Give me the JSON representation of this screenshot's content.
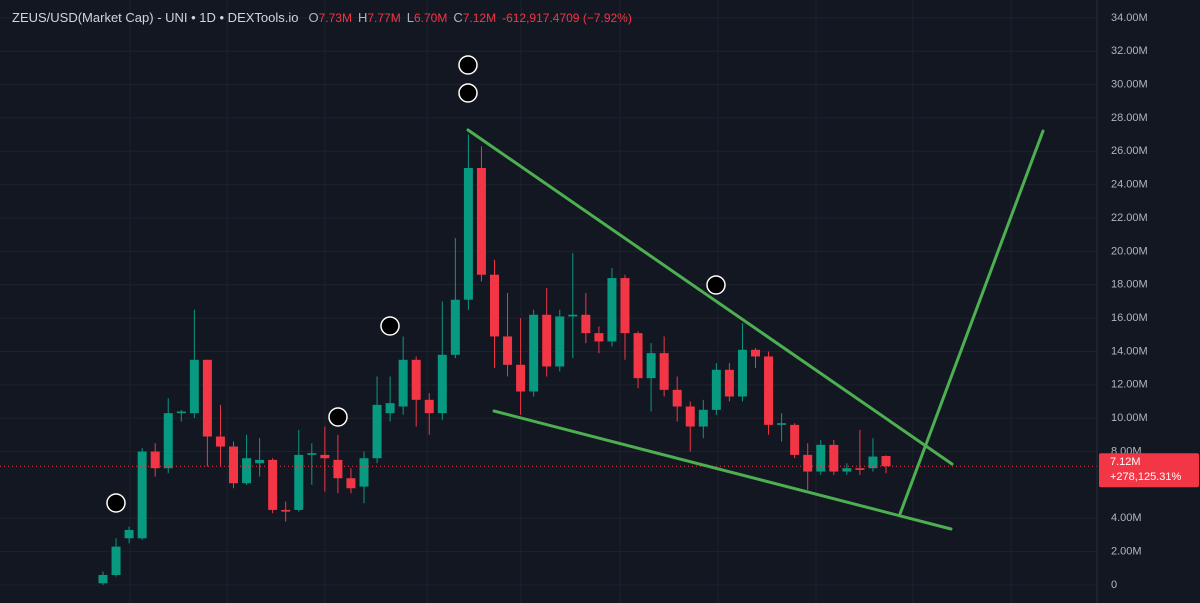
{
  "chart_data": {
    "type": "candlestick",
    "title": "ZEUS/USD(Market Cap) - UNI • 1D • DEXTools.io",
    "ohlc_header": [
      {
        "key": "O",
        "value": "7.73M"
      },
      {
        "key": "H",
        "value": "7.77M"
      },
      {
        "key": "L",
        "value": "6.70M"
      },
      {
        "key": "C",
        "value": "7.12M"
      }
    ],
    "change": "-612,917.4709 (−7.92%)",
    "open": [
      0.1,
      0.6,
      2.8,
      2.8,
      8.0,
      7.0,
      10.3,
      10.3,
      13.5,
      8.9,
      8.3,
      6.1,
      7.3,
      7.5,
      4.5,
      4.5,
      7.8,
      7.8,
      7.5,
      6.4,
      5.9,
      7.6,
      10.3,
      10.7,
      13.5,
      11.1,
      10.3,
      13.8,
      17.1,
      25.0,
      18.6,
      14.9,
      13.2,
      11.6,
      16.2,
      13.1,
      16.1,
      16.2,
      15.1,
      14.6,
      18.4,
      15.1,
      12.4,
      13.9,
      11.7,
      10.7,
      9.5,
      10.5,
      12.9,
      11.3,
      14.1,
      13.7,
      9.6,
      9.6,
      7.8,
      6.8,
      8.4,
      6.8,
      7.0,
      7.0,
      7.73
    ],
    "high": [
      0.8,
      2.8,
      3.5,
      8.2,
      8.5,
      11.2,
      10.5,
      16.5,
      13.5,
      10.8,
      8.6,
      9.0,
      8.8,
      7.6,
      5.0,
      9.3,
      8.5,
      9.5,
      9.0,
      7.0,
      8.0,
      12.5,
      12.5,
      14.9,
      13.7,
      11.5,
      17.0,
      20.8,
      27.0,
      26.3,
      19.5,
      17.5,
      16.0,
      16.5,
      17.8,
      16.5,
      19.9,
      17.5,
      15.5,
      19.0,
      18.6,
      15.2,
      14.5,
      14.9,
      12.5,
      11.0,
      11.1,
      13.3,
      13.3,
      15.7,
      14.2,
      14.0,
      10.3,
      9.7,
      8.5,
      8.7,
      8.7,
      7.3,
      9.3,
      8.8,
      7.77
    ],
    "low": [
      0.0,
      0.5,
      2.5,
      2.7,
      6.5,
      6.7,
      9.8,
      10.0,
      7.1,
      7.1,
      5.8,
      6.0,
      6.5,
      4.3,
      3.8,
      4.4,
      6.0,
      5.6,
      5.5,
      5.5,
      4.9,
      7.3,
      9.8,
      10.2,
      9.5,
      9.0,
      9.9,
      13.6,
      16.5,
      18.2,
      13.0,
      12.5,
      10.2,
      11.3,
      12.5,
      12.8,
      13.6,
      14.5,
      13.9,
      14.3,
      13.5,
      11.8,
      10.4,
      11.3,
      9.8,
      8.0,
      8.8,
      10.2,
      11.0,
      11.0,
      13.0,
      9.0,
      8.6,
      7.6,
      5.7,
      6.6,
      6.6,
      6.6,
      6.6,
      6.8,
      6.7
    ],
    "close": [
      0.6,
      2.3,
      3.3,
      8.0,
      7.0,
      10.3,
      10.4,
      13.5,
      8.9,
      8.3,
      6.1,
      7.6,
      7.5,
      4.5,
      4.4,
      7.8,
      7.9,
      7.6,
      6.4,
      5.8,
      7.6,
      10.8,
      10.9,
      13.5,
      11.1,
      10.3,
      13.8,
      17.1,
      25.0,
      18.6,
      14.9,
      13.2,
      11.6,
      16.2,
      13.1,
      16.1,
      16.2,
      15.1,
      14.6,
      18.4,
      15.1,
      12.4,
      13.9,
      11.7,
      10.7,
      9.5,
      10.5,
      12.9,
      11.3,
      14.1,
      13.7,
      9.6,
      9.7,
      7.8,
      6.8,
      8.4,
      6.8,
      7.0,
      6.9,
      7.7,
      7.12
    ],
    "up_color": "#089981",
    "down_color": "#f23645",
    "ylim": [
      -1.08,
      35.07
    ],
    "yticks": [
      {
        "value": 0,
        "label": "0"
      },
      {
        "value": 2,
        "label": "2.00M"
      },
      {
        "value": 4,
        "label": "4.00M"
      },
      {
        "value": 8,
        "label": "8.00M"
      },
      {
        "value": 10,
        "label": "10.00M"
      },
      {
        "value": 12,
        "label": "12.00M"
      },
      {
        "value": 14,
        "label": "14.00M"
      },
      {
        "value": 16,
        "label": "16.00M"
      },
      {
        "value": 18,
        "label": "18.00M"
      },
      {
        "value": 20,
        "label": "20.00M"
      },
      {
        "value": 22,
        "label": "22.00M"
      },
      {
        "value": 24,
        "label": "24.00M"
      },
      {
        "value": 26,
        "label": "26.00M"
      },
      {
        "value": 28,
        "label": "28.00M"
      },
      {
        "value": 30,
        "label": "30.00M"
      },
      {
        "value": 32,
        "label": "32.00M"
      },
      {
        "value": 34,
        "label": "34.00M"
      }
    ],
    "grid": true,
    "price_tag": {
      "price": "7.12M",
      "change": "+278,125.31%"
    }
  }
}
